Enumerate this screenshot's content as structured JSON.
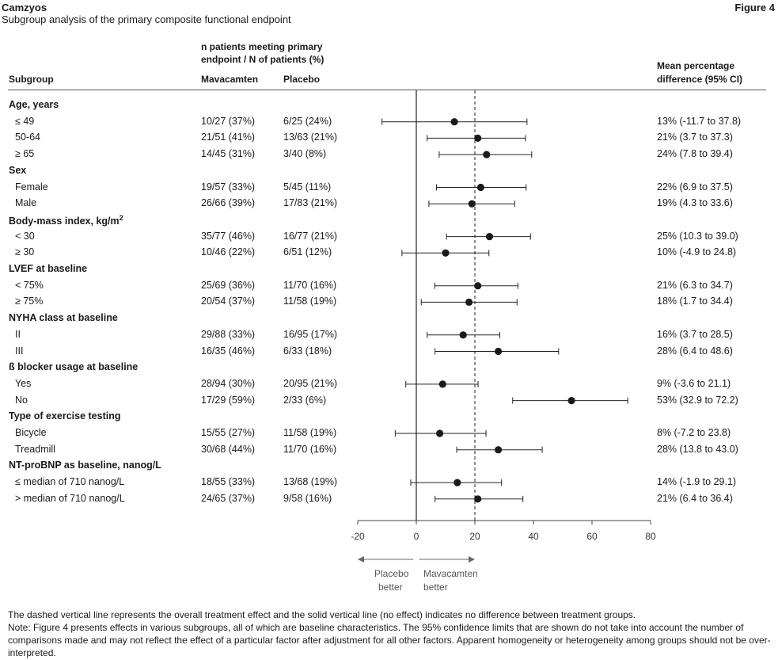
{
  "header": {
    "drug": "Camzyos",
    "figure_label": "Figure 4",
    "subtitle": "Subgroup analysis of the primary composite functional endpoint"
  },
  "columns": {
    "group_header_line1": "n patients meeting primary",
    "group_header_line2": "endpoint / N of patients (%)",
    "subgroup": "Subgroup",
    "mavacamten": "Mavacamten",
    "placebo": "Placebo",
    "diff_line1": "Mean percentage",
    "diff_line2": "difference (95% CI)"
  },
  "groups": [
    {
      "title": "Age, years",
      "rows": [
        {
          "label": "≤ 49",
          "mava": "10/27 (37%)",
          "placebo": "6/25 (24%)",
          "diff": "13% (-11.7 to 37.8)"
        },
        {
          "label": "50-64",
          "mava": "21/51 (41%)",
          "placebo": "13/63 (21%)",
          "diff": "21% (3.7 to 37.3)"
        },
        {
          "label": "≥ 65",
          "mava": "14/45 (31%)",
          "placebo": "3/40 (8%)",
          "diff": "24% (7.8 to 39.4)"
        }
      ]
    },
    {
      "title": "Sex",
      "rows": [
        {
          "label": "Female",
          "mava": "19/57 (33%)",
          "placebo": "5/45 (11%)",
          "diff": "22% (6.9 to 37.5)"
        },
        {
          "label": "Male",
          "mava": "26/66 (39%)",
          "placebo": "17/83 (21%)",
          "diff": "19% (4.3 to 33.6)"
        }
      ]
    },
    {
      "title": "Body-mass index, kg/m",
      "title_sup": "2",
      "rows": [
        {
          "label": "< 30",
          "mava": "35/77 (46%)",
          "placebo": "16/77 (21%)",
          "diff": "25% (10.3 to 39.0)"
        },
        {
          "label": "≥ 30",
          "mava": "10/46 (22%)",
          "placebo": "6/51 (12%)",
          "diff": "10% (-4.9 to 24.8)"
        }
      ]
    },
    {
      "title": "LVEF at baseline",
      "rows": [
        {
          "label": "< 75%",
          "mava": "25/69 (36%)",
          "placebo": "11/70 (16%)",
          "diff": "21% (6.3 to 34.7)"
        },
        {
          "label": "≥ 75%",
          "mava": "20/54 (37%)",
          "placebo": "11/58 (19%)",
          "diff": "18% (1.7 to 34.4)"
        }
      ]
    },
    {
      "title": "NYHA class at baseline",
      "rows": [
        {
          "label": "II",
          "mava": "29/88 (33%)",
          "placebo": "16/95 (17%)",
          "diff": "16% (3.7 to 28.5)"
        },
        {
          "label": "III",
          "mava": "16/35 (46%)",
          "placebo": "6/33 (18%)",
          "diff": "28% (6.4 to 48.6)"
        }
      ]
    },
    {
      "title": "ß blocker usage at baseline",
      "rows": [
        {
          "label": "Yes",
          "mava": "28/94 (30%)",
          "placebo": "20/95 (21%)",
          "diff": "9% (-3.6 to 21.1)"
        },
        {
          "label": "No",
          "mava": "17/29 (59%)",
          "placebo": "2/33 (6%)",
          "diff": "53% (32.9 to 72.2)"
        }
      ]
    },
    {
      "title": "Type of exercise testing",
      "rows": [
        {
          "label": "Bicycle",
          "mava": "15/55 (27%)",
          "placebo": "11/58 (19%)",
          "diff": "8% (-7.2 to 23.8)"
        },
        {
          "label": "Treadmill",
          "mava": "30/68 (44%)",
          "placebo": "11/70 (16%)",
          "diff": "28% (13.8 to 43.0)"
        }
      ]
    },
    {
      "title": "NT-proBNP as baseline, nanog/L",
      "rows": [
        {
          "label": "≤ median  of 710 nanog/L",
          "mava": "18/55 (33%)",
          "placebo": "13/68 (19%)",
          "diff": "14% (-1.9 to 29.1)"
        },
        {
          "label": "> median of 710 nanog/L",
          "mava": "24/65 (37%)",
          "placebo": "9/58 (16%)",
          "diff": "21% (6.4 to 36.4)"
        }
      ]
    }
  ],
  "chart_data": {
    "type": "scatter",
    "subtype": "forest-plot",
    "xlim": [
      -20,
      80
    ],
    "xticks": [
      "-20",
      "0",
      "20",
      "40",
      "60",
      "80"
    ],
    "null_line": 0,
    "overall_effect_line": 20,
    "points": [
      {
        "est": 13,
        "lo": -11.7,
        "hi": 37.8
      },
      {
        "est": 21,
        "lo": 3.7,
        "hi": 37.3
      },
      {
        "est": 24,
        "lo": 7.8,
        "hi": 39.4
      },
      {
        "est": 22,
        "lo": 6.9,
        "hi": 37.5
      },
      {
        "est": 19,
        "lo": 4.3,
        "hi": 33.6
      },
      {
        "est": 25,
        "lo": 10.3,
        "hi": 39.0
      },
      {
        "est": 10,
        "lo": -4.9,
        "hi": 24.8
      },
      {
        "est": 21,
        "lo": 6.3,
        "hi": 34.7
      },
      {
        "est": 18,
        "lo": 1.7,
        "hi": 34.4
      },
      {
        "est": 16,
        "lo": 3.7,
        "hi": 28.5
      },
      {
        "est": 28,
        "lo": 6.4,
        "hi": 48.6
      },
      {
        "est": 9,
        "lo": -3.6,
        "hi": 21.1
      },
      {
        "est": 53,
        "lo": 32.9,
        "hi": 72.2
      },
      {
        "est": 8,
        "lo": -7.2,
        "hi": 23.8
      },
      {
        "est": 28,
        "lo": 13.8,
        "hi": 43.0
      },
      {
        "est": 14,
        "lo": -1.9,
        "hi": 29.1
      },
      {
        "est": 21,
        "lo": 6.4,
        "hi": 36.4
      }
    ],
    "direction_left_line1": "Placebo",
    "direction_left_line2": "better",
    "direction_right_line1": "Mavacamten",
    "direction_right_line2": "better"
  },
  "footnotes": [
    "The dashed vertical line represents the overall treatment effect and the solid vertical line (no effect) indicates no difference between treatment groups.",
    "Note: Figure 4 presents effects in various subgroups, all of which are baseline characteristics. The 95% confidence limits that are shown do not take into account the number of comparisons made and may not reflect the effect of a particular factor after adjustment for all other factors. Apparent homogeneity or heterogeneity among groups should not be over-interpreted."
  ]
}
